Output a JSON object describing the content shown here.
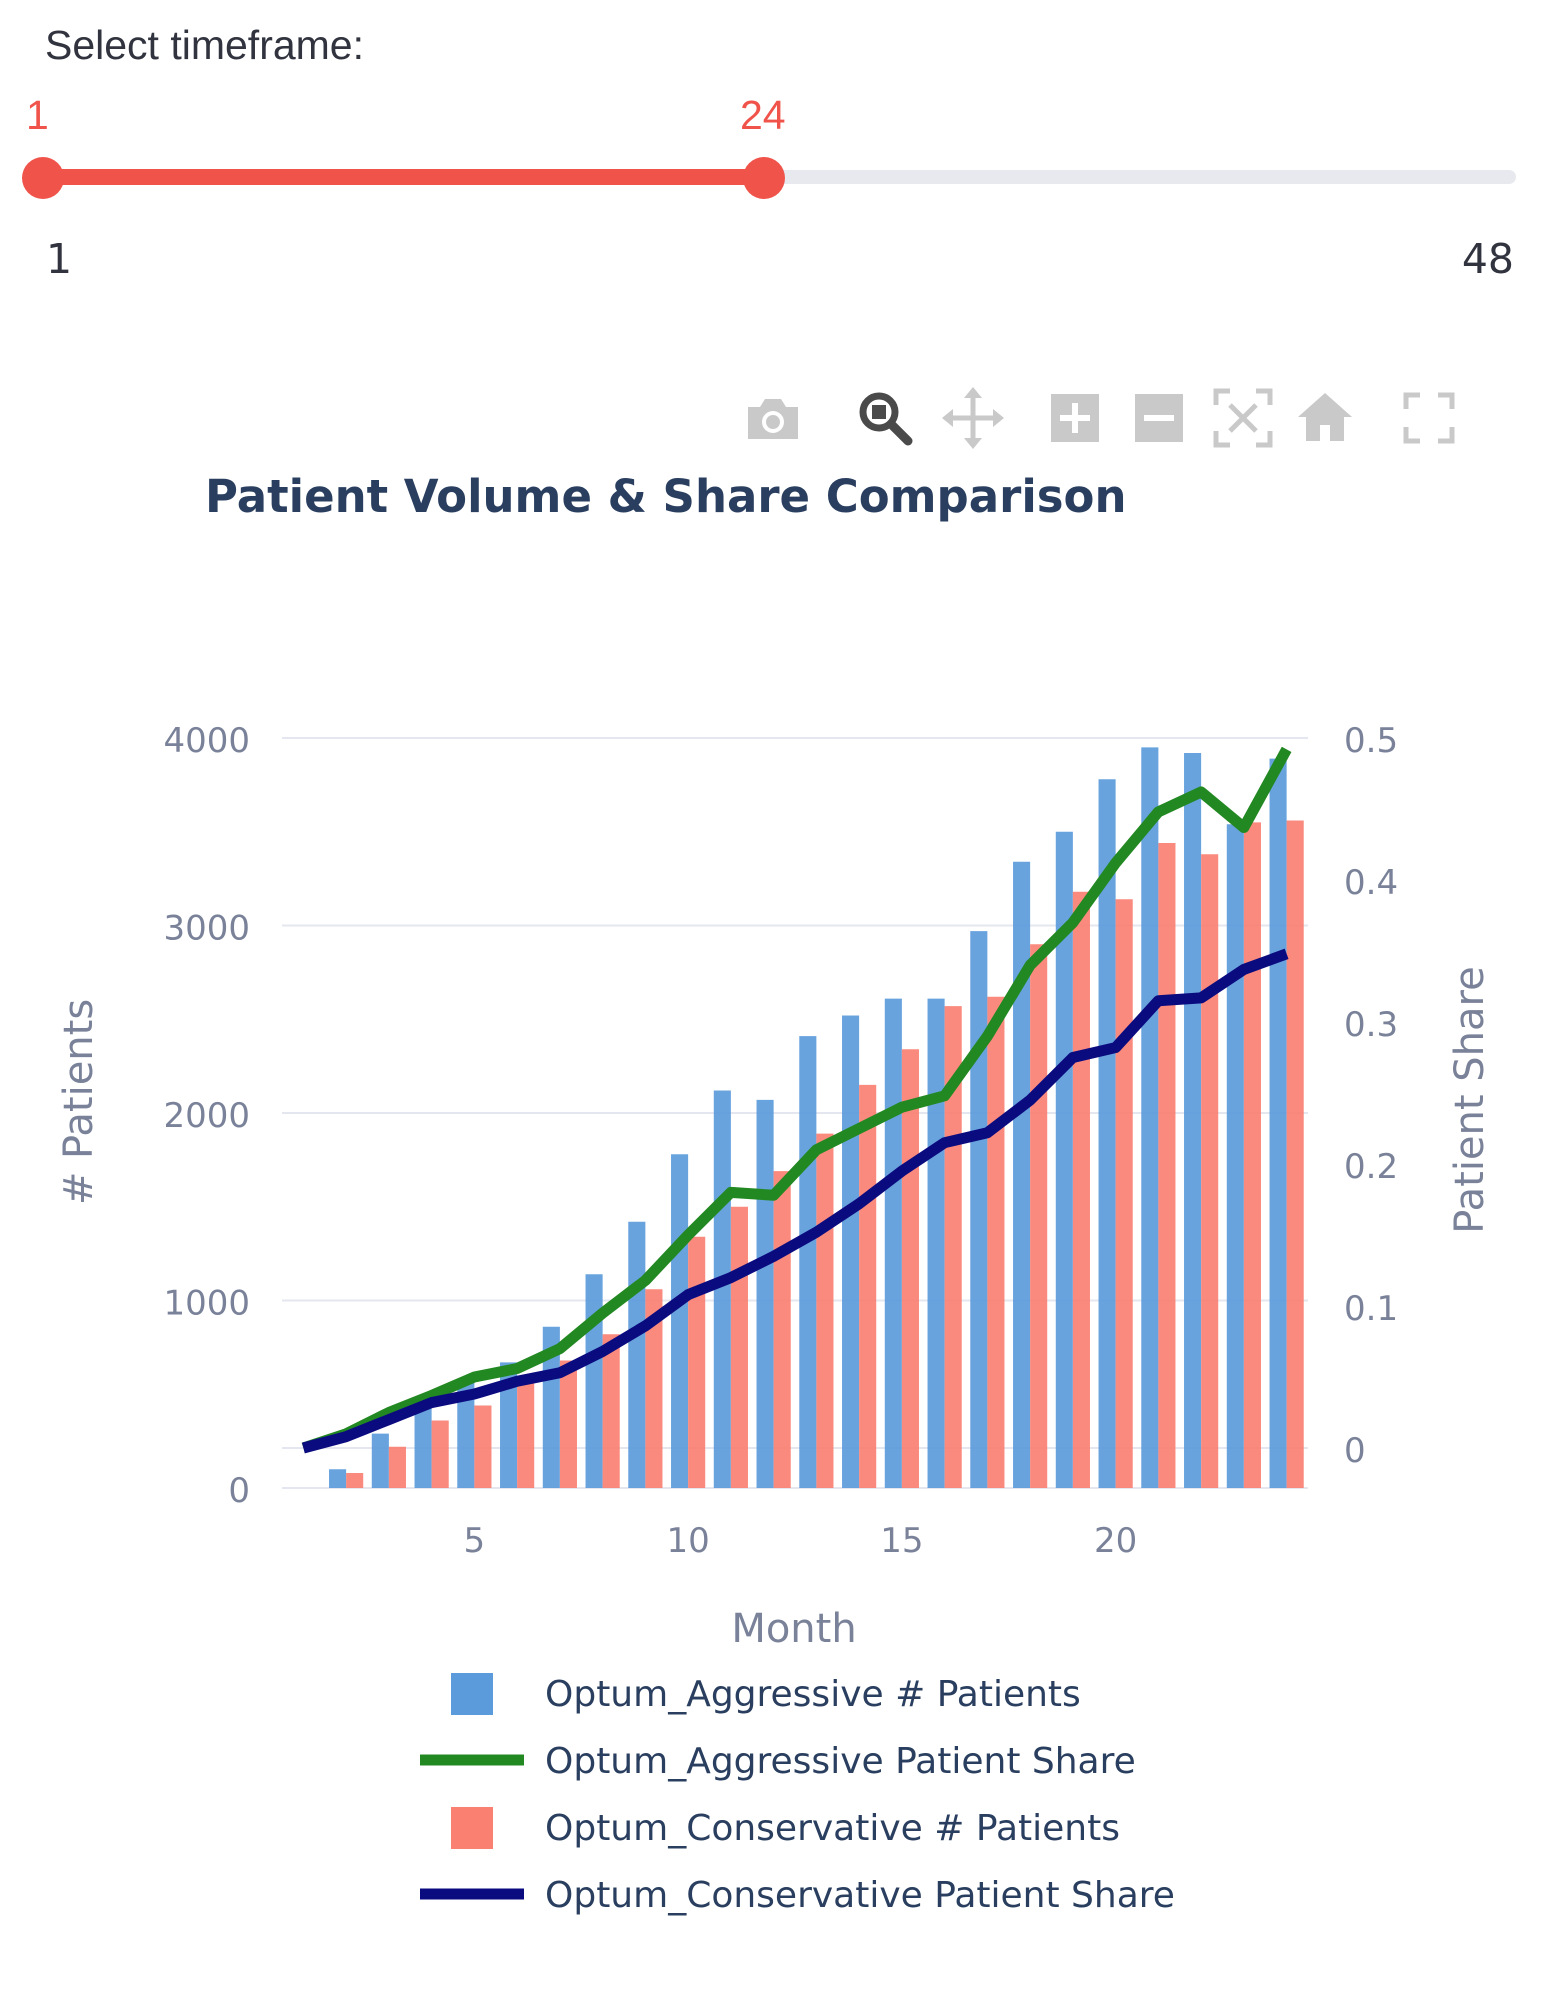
{
  "slider": {
    "label": "Select timeframe:",
    "value_min": "1",
    "value_max": "24",
    "range_min": "1",
    "range_max": "48",
    "selected_fraction": [
      0,
      0.49
    ],
    "accent_color": "#f0534a",
    "track_color": "#e8e9ee"
  },
  "toolbar": {
    "icons": [
      "camera-icon",
      "zoom-icon",
      "pan-icon",
      "zoom-in-icon",
      "zoom-out-icon",
      "autoscale-icon",
      "reset-axes-icon",
      "fullscreen-icon"
    ],
    "active": "zoom-icon"
  },
  "chart_data": {
    "type": "bar",
    "title": "Patient Volume & Share Comparison",
    "xlabel": "Month",
    "ylabel": "# Patients",
    "y2label": "Patient Share",
    "xlim": [
      0.5,
      24.5
    ],
    "ylim": [
      0,
      4000
    ],
    "y2lim": [
      0,
      0.5
    ],
    "xticks": [
      "5",
      "10",
      "15",
      "20"
    ],
    "yticks": [
      "0",
      "1000",
      "2000",
      "3000",
      "4000"
    ],
    "y2ticks": [
      "0",
      "0.1",
      "0.2",
      "0.3",
      "0.4",
      "0.5"
    ],
    "grid": true,
    "legend_position": "bottom",
    "x": [
      1,
      2,
      3,
      4,
      5,
      6,
      7,
      8,
      9,
      10,
      11,
      12,
      13,
      14,
      15,
      16,
      17,
      18,
      19,
      20,
      21,
      22,
      23,
      24
    ],
    "series": [
      {
        "name": "Optum_Aggressive # Patients",
        "kind": "bar",
        "axis": "y",
        "color": "#5b9bdb",
        "values": [
          0,
          100,
          290,
          480,
          570,
          670,
          860,
          1140,
          1420,
          1780,
          2120,
          2070,
          2410,
          2520,
          2610,
          2610,
          2970,
          3340,
          3500,
          3780,
          3950,
          3920,
          3540,
          3890
        ]
      },
      {
        "name": "Optum_Aggressive Patient Share",
        "kind": "line",
        "axis": "y2",
        "color": "#228822",
        "values": [
          0,
          0.01,
          0.025,
          0.037,
          0.05,
          0.056,
          0.07,
          0.095,
          0.118,
          0.15,
          0.18,
          0.178,
          0.21,
          0.225,
          0.24,
          0.248,
          0.29,
          0.34,
          0.37,
          0.412,
          0.448,
          0.462,
          0.437,
          0.492
        ]
      },
      {
        "name": "Optum_Conservative # Patients",
        "kind": "bar",
        "axis": "y",
        "color": "#fa8072",
        "values": [
          0,
          80,
          220,
          360,
          440,
          560,
          680,
          820,
          1060,
          1340,
          1500,
          1690,
          1890,
          2150,
          2340,
          2570,
          2620,
          2900,
          3180,
          3140,
          3440,
          3380,
          3550,
          3560
        ]
      },
      {
        "name": "Optum_Conservative Patient Share",
        "kind": "line",
        "axis": "y2",
        "color": "#0b0b80",
        "values": [
          0,
          0.008,
          0.02,
          0.032,
          0.038,
          0.047,
          0.053,
          0.068,
          0.086,
          0.108,
          0.12,
          0.135,
          0.152,
          0.172,
          0.195,
          0.215,
          0.222,
          0.245,
          0.275,
          0.282,
          0.315,
          0.317,
          0.337,
          0.348
        ]
      }
    ]
  }
}
